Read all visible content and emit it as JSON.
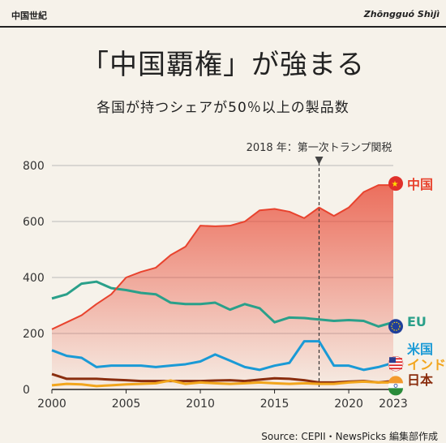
{
  "header": {
    "left": "中国世紀",
    "right": "Zhōngguó Shìjì"
  },
  "title": "「中国覇権」が強まる",
  "subtitle": "各国が持つシェアが50％以上の製品数",
  "source": "Source: CEPII・NewsPicks 編集部作成",
  "chart_data": {
    "type": "line",
    "x": [
      2000,
      2001,
      2002,
      2003,
      2004,
      2005,
      2006,
      2007,
      2008,
      2009,
      2010,
      2011,
      2012,
      2013,
      2014,
      2015,
      2016,
      2017,
      2018,
      2019,
      2020,
      2021,
      2022,
      2023
    ],
    "ylim": [
      0,
      800
    ],
    "xlim": [
      2000,
      2023
    ],
    "yticks": [
      0,
      200,
      400,
      600,
      800
    ],
    "xticks": [
      2000,
      2005,
      2010,
      2015,
      2020,
      2023
    ],
    "grid": true,
    "annotation": {
      "x": 2018,
      "text": "2018 年：第一次トランプ関税"
    },
    "series": [
      {
        "name": "中国",
        "color": "#e8432e",
        "area": true,
        "values": [
          215,
          240,
          265,
          305,
          340,
          400,
          420,
          435,
          480,
          510,
          585,
          583,
          585,
          600,
          640,
          645,
          635,
          612,
          650,
          620,
          650,
          705,
          730,
          730
        ]
      },
      {
        "name": "EU",
        "color": "#2aa08a",
        "values": [
          325,
          340,
          378,
          385,
          362,
          355,
          345,
          340,
          310,
          305,
          305,
          310,
          285,
          305,
          290,
          240,
          257,
          255,
          250,
          245,
          248,
          245,
          225,
          240
        ]
      },
      {
        "name": "米国",
        "color": "#1a9ad6",
        "values": [
          140,
          120,
          113,
          80,
          85,
          85,
          85,
          80,
          85,
          90,
          100,
          125,
          103,
          80,
          70,
          85,
          95,
          172,
          172,
          85,
          85,
          70,
          80,
          95
        ]
      },
      {
        "name": "インド",
        "color": "#f2a51c",
        "values": [
          15,
          20,
          18,
          12,
          15,
          18,
          20,
          22,
          32,
          20,
          25,
          22,
          20,
          22,
          25,
          22,
          20,
          22,
          20,
          20,
          25,
          28,
          25,
          25
        ]
      },
      {
        "name": "日本",
        "color": "#8a2d0e",
        "values": [
          55,
          38,
          38,
          38,
          35,
          33,
          30,
          30,
          30,
          30,
          30,
          32,
          33,
          30,
          35,
          40,
          38,
          33,
          25,
          25,
          28,
          30,
          25,
          30
        ]
      }
    ]
  }
}
